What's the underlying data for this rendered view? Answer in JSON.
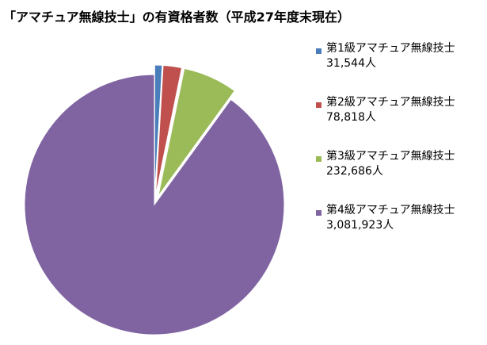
{
  "chart_data": {
    "type": "pie",
    "title": "「アマチュア無線技士」の有資格者数（平成27年度末現在）",
    "categories": [
      "第1級アマチュア無線技士",
      "第2級アマチュア無線技士",
      "第3級アマチュア無線技士",
      "第4級アマチュア無線技士"
    ],
    "values": [
      31544,
      78818,
      232686,
      3081923
    ],
    "value_labels": [
      "31,544人",
      "78,818人",
      "232,686人",
      "3,081,923人"
    ],
    "colors": [
      "#4a7ebb",
      "#c0504d",
      "#9bbb59",
      "#8064a2"
    ],
    "exploded": true,
    "legend_position": "right"
  }
}
